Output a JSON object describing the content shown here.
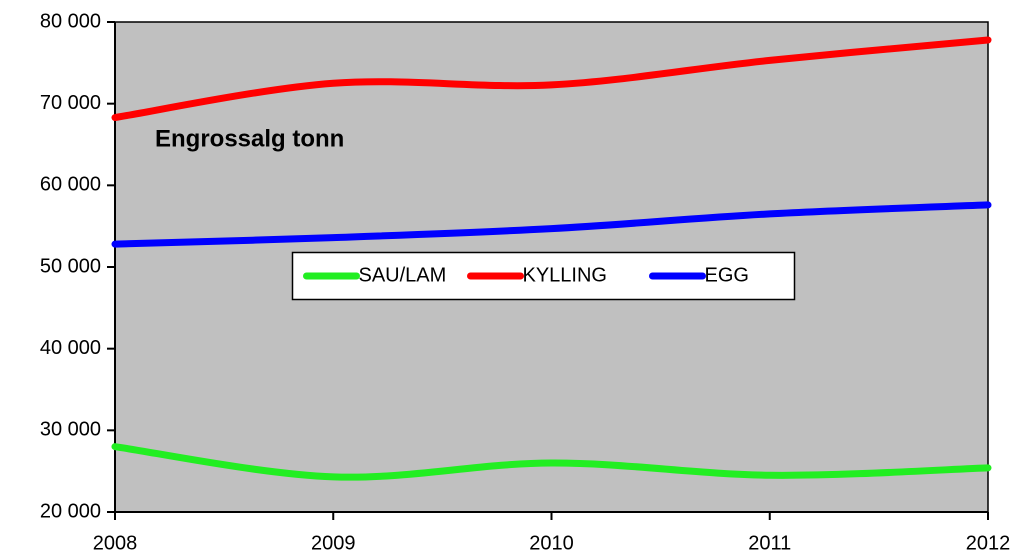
{
  "chart_data": {
    "type": "line",
    "title": "Engrossalg tonn",
    "x": [
      2008,
      2009,
      2010,
      2011,
      2012
    ],
    "series": [
      {
        "name": "SAU/LAM",
        "color": "#22ee22",
        "values": [
          28000,
          24300,
          26000,
          24500,
          25400
        ]
      },
      {
        "name": "KYLLING",
        "color": "#ff0000",
        "values": [
          68300,
          72500,
          72300,
          75300,
          77800
        ]
      },
      {
        "name": "EGG",
        "color": "#0000ff",
        "values": [
          52800,
          53600,
          54700,
          56500,
          57600
        ]
      }
    ],
    "xlim": [
      2008,
      2012
    ],
    "xticks": [
      2008,
      2009,
      2010,
      2011,
      2012
    ],
    "ylim": [
      20000,
      80000
    ],
    "yticks": [
      {
        "value": 20000,
        "label": "20 000"
      },
      {
        "value": 30000,
        "label": "30 000"
      },
      {
        "value": 40000,
        "label": "40 000"
      },
      {
        "value": 50000,
        "label": "50 000"
      },
      {
        "value": 60000,
        "label": "60 000"
      },
      {
        "value": 70000,
        "label": "70 000"
      },
      {
        "value": 80000,
        "label": "80 000"
      }
    ],
    "smooth": true,
    "legend": "center",
    "plot_background": "#c0c0c0"
  }
}
